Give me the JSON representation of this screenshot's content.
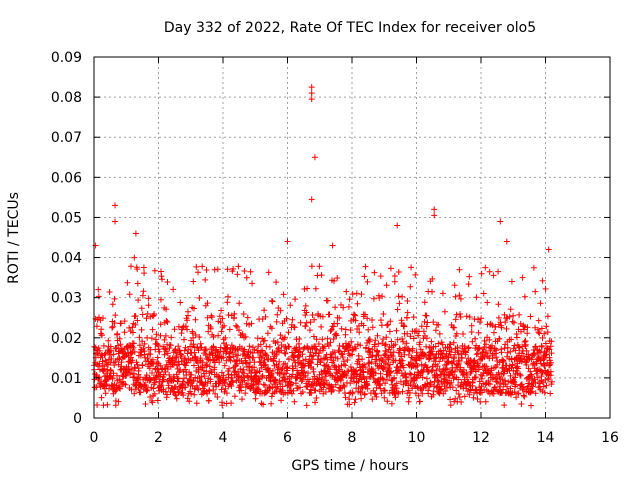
{
  "chart_data": {
    "type": "scatter",
    "title": "Day 332 of 2022, Rate Of TEC Index for receiver olo5",
    "xlabel": "GPS time / hours",
    "ylabel": "ROTI / TECUs",
    "xlim": [
      0,
      16
    ],
    "ylim": [
      0,
      0.09
    ],
    "xticks": [
      "0",
      "2",
      "4",
      "6",
      "8",
      "10",
      "12",
      "14",
      "16"
    ],
    "yticks": [
      "0",
      "0.01",
      "0.02",
      "0.03",
      "0.04",
      "0.05",
      "0.06",
      "0.07",
      "0.08",
      "0.09"
    ],
    "grid": true,
    "marker": "+",
    "color": "#ff0000",
    "x_data_range": [
      0,
      14.2
    ],
    "baseline_band": [
      0.006,
      0.018
    ],
    "notable_points": [
      {
        "x": 0.05,
        "y": 0.043
      },
      {
        "x": 0.65,
        "y": 0.053
      },
      {
        "x": 0.65,
        "y": 0.049
      },
      {
        "x": 1.3,
        "y": 0.046
      },
      {
        "x": 1.25,
        "y": 0.04
      },
      {
        "x": 6.0,
        "y": 0.044
      },
      {
        "x": 6.75,
        "y": 0.0825
      },
      {
        "x": 6.75,
        "y": 0.081
      },
      {
        "x": 6.75,
        "y": 0.0795
      },
      {
        "x": 6.85,
        "y": 0.065
      },
      {
        "x": 6.75,
        "y": 0.0545
      },
      {
        "x": 7.4,
        "y": 0.043
      },
      {
        "x": 9.4,
        "y": 0.048
      },
      {
        "x": 10.55,
        "y": 0.052
      },
      {
        "x": 10.55,
        "y": 0.0505
      },
      {
        "x": 12.6,
        "y": 0.049
      },
      {
        "x": 12.8,
        "y": 0.044
      },
      {
        "x": 14.1,
        "y": 0.042
      }
    ]
  }
}
